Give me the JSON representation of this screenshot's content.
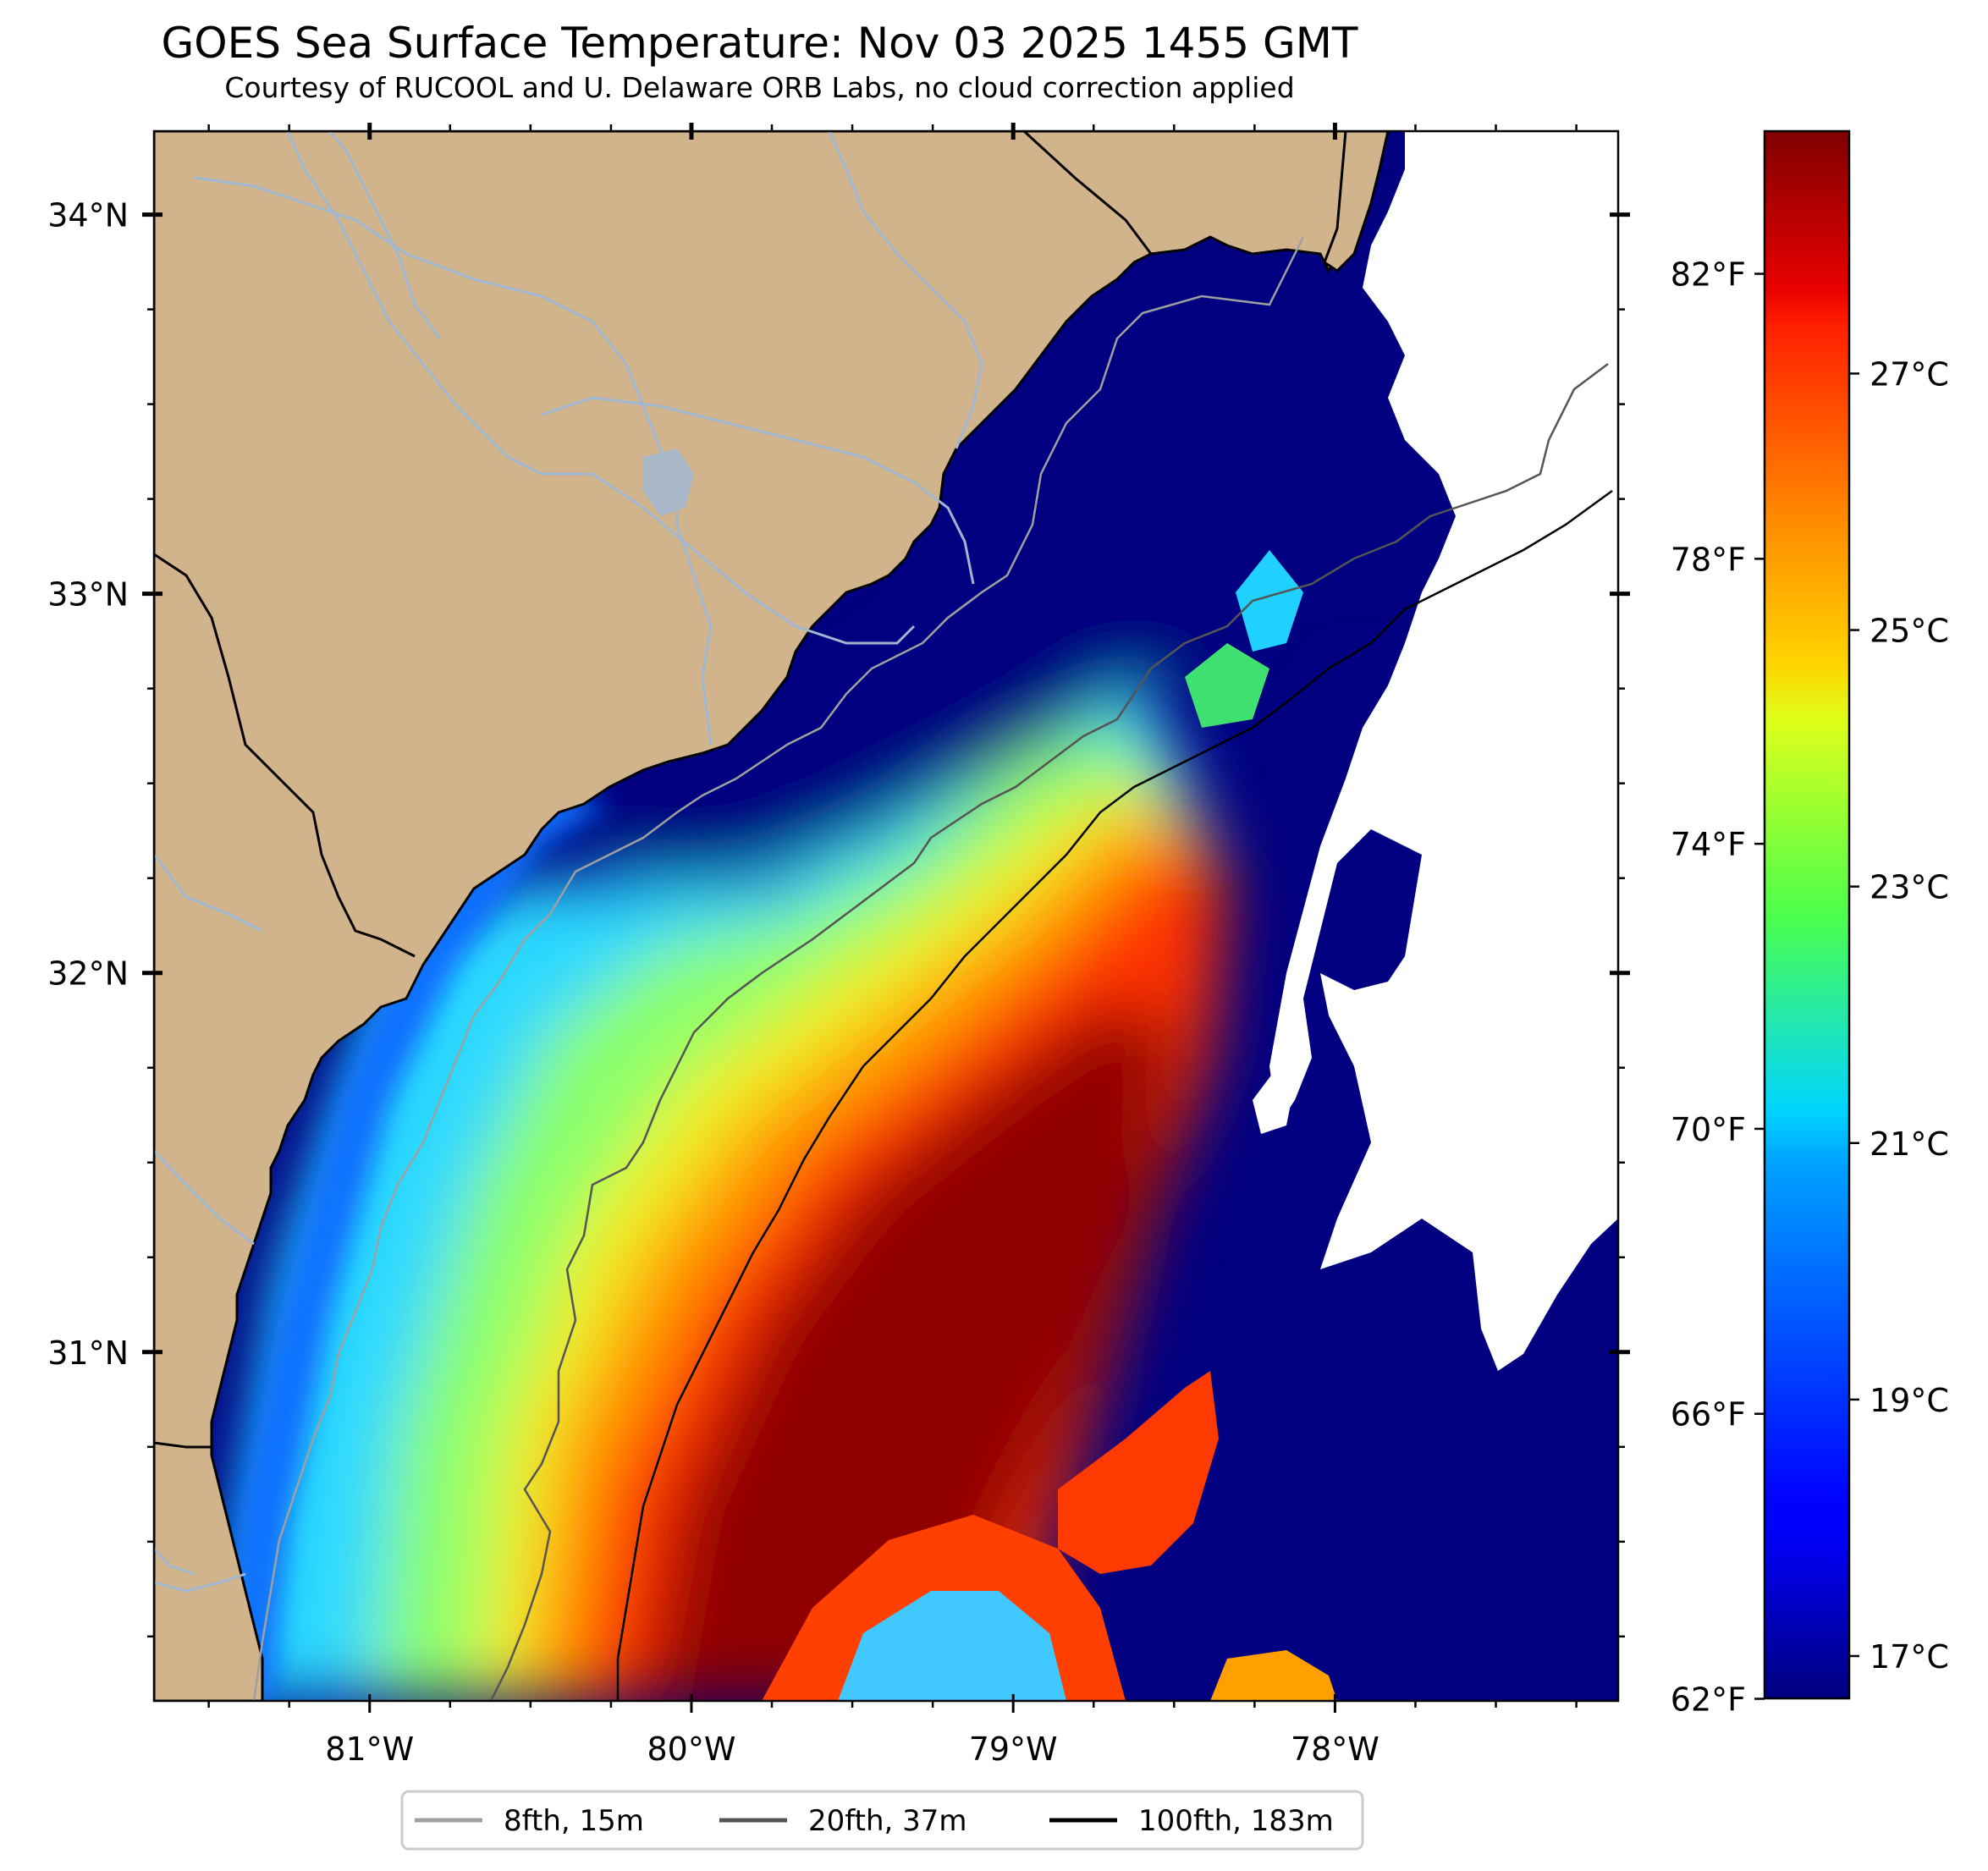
{
  "header": {
    "title": "GOES Sea Surface Temperature: Nov 03 2025 1455 GMT",
    "subtitle": "Courtesy of RUCOOL and U. Delaware ORB Labs, no cloud correction applied"
  },
  "map": {
    "lon_range": [
      -81.67,
      -77.12
    ],
    "lat_range": [
      30.08,
      34.22
    ],
    "lon_ticks": [
      "81°W",
      "80°W",
      "79°W",
      "78°W"
    ],
    "lat_ticks": [
      "34°N",
      "33°N",
      "32°N",
      "31°N"
    ],
    "colors": {
      "land": "#d2b48c",
      "water_dark": "#000080",
      "cloud": "#ffffff",
      "coastline": "#000000",
      "rivers": "#9fb7d0"
    },
    "region_shown": "Carolina and Georgia coast, South Atlantic Bight"
  },
  "legend": {
    "items": [
      {
        "label": "8fth, 15m",
        "color": "#a0a0a0"
      },
      {
        "label": "20fth, 37m",
        "color": "#555555"
      },
      {
        "label": "100fth, 183m",
        "color": "#000000"
      }
    ]
  },
  "colorbar": {
    "colormap": "jet",
    "celsius_range": [
      16.67,
      28.89
    ],
    "fahrenheit_labels": [
      "82°F",
      "78°F",
      "74°F",
      "70°F",
      "66°F",
      "62°F"
    ],
    "fahrenheit_values": [
      82,
      78,
      74,
      70,
      66,
      62
    ],
    "celsius_labels": [
      "27°C",
      "25°C",
      "23°C",
      "21°C",
      "19°C",
      "17°C"
    ],
    "celsius_values": [
      27,
      25,
      23,
      21,
      19,
      17
    ]
  }
}
